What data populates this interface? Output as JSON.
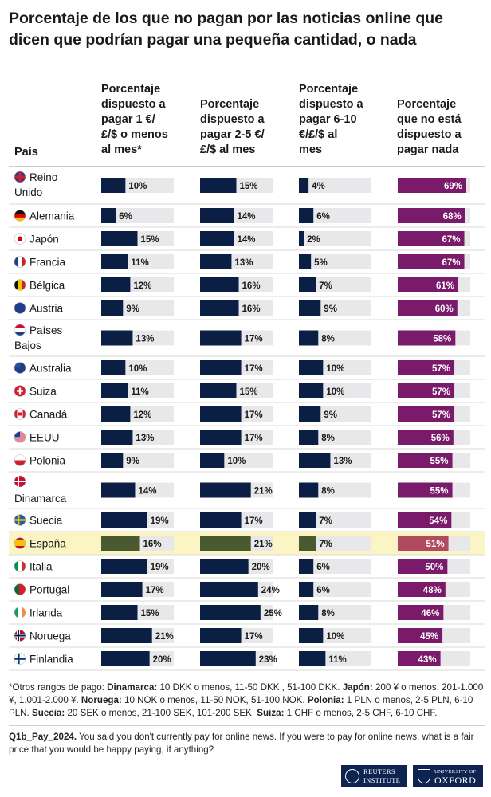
{
  "title": "Porcentaje de los que no pagan por las noticias online que dicen que podrían pagar una pequeña cantidad, o nada",
  "column_headers": {
    "country": "País",
    "c1": [
      "Porcentaje",
      "dispuesto a",
      "pagar 1 €/",
      "£/$ o menos",
      "al mes*"
    ],
    "c2": [
      "Porcentaje",
      "dispuesto a",
      "pagar 2-5 €/",
      "£/$ al mes"
    ],
    "c3": [
      "Porcentaje",
      "dispuesto a",
      "pagar 6-10",
      "€/£/$ al",
      "mes"
    ],
    "c4": [
      "Porcentaje",
      "que no está",
      "dispuesto a",
      "pagar nada"
    ]
  },
  "colors": {
    "bar_paid": "#0b1f44",
    "bar_paid_highlight": "#4a5a30",
    "bar_none": "#7a1a6a",
    "bar_none_highlight": "#b04a5e",
    "track": "#e8e8ea",
    "highlight_row": "#fbf5c4"
  },
  "chart_data": {
    "type": "table",
    "highlight": "España",
    "columns": [
      "Porcentaje dispuesto a pagar 1 €/£/$ o menos al mes*",
      "Porcentaje dispuesto a pagar 2-5 €/£/$ al mes",
      "Porcentaje dispuesto a pagar 6-10 €/£/$ al mes",
      "Porcentaje que no está dispuesto a pagar nada"
    ],
    "rows": [
      {
        "country": [
          "Reino",
          "Unido"
        ],
        "flag": "uk-flag",
        "values": [
          10,
          15,
          4,
          69
        ]
      },
      {
        "country": [
          "Alemania"
        ],
        "flag": "germany-flag",
        "values": [
          6,
          14,
          6,
          68
        ]
      },
      {
        "country": [
          "Japón"
        ],
        "flag": "japan-flag",
        "values": [
          15,
          14,
          2,
          67
        ]
      },
      {
        "country": [
          "Francia"
        ],
        "flag": "france-flag",
        "values": [
          11,
          13,
          5,
          67
        ]
      },
      {
        "country": [
          "Bélgica"
        ],
        "flag": "belgium-flag",
        "values": [
          12,
          16,
          7,
          61
        ]
      },
      {
        "country": [
          "Austria"
        ],
        "flag": "austria-flag",
        "values": [
          9,
          16,
          9,
          60
        ]
      },
      {
        "country": [
          "Países",
          "Bajos"
        ],
        "flag": "netherlands-flag",
        "values": [
          13,
          17,
          8,
          58
        ]
      },
      {
        "country": [
          "Australia"
        ],
        "flag": "australia-flag",
        "values": [
          10,
          17,
          10,
          57
        ]
      },
      {
        "country": [
          "Suiza"
        ],
        "flag": "switzerland-flag",
        "values": [
          11,
          15,
          10,
          57
        ]
      },
      {
        "country": [
          "Canadá"
        ],
        "flag": "canada-flag",
        "values": [
          12,
          17,
          9,
          57
        ]
      },
      {
        "country": [
          "EEUU"
        ],
        "flag": "usa-flag",
        "values": [
          13,
          17,
          8,
          56
        ]
      },
      {
        "country": [
          "Polonia"
        ],
        "flag": "poland-flag",
        "values": [
          9,
          10,
          13,
          55
        ]
      },
      {
        "country": [
          "",
          "Dinamarca"
        ],
        "flag": "denmark-flag",
        "values": [
          14,
          21,
          8,
          55
        ]
      },
      {
        "country": [
          "Suecia"
        ],
        "flag": "sweden-flag",
        "values": [
          19,
          17,
          7,
          54
        ]
      },
      {
        "country": [
          "España"
        ],
        "flag": "spain-flag",
        "values": [
          16,
          21,
          7,
          51
        ]
      },
      {
        "country": [
          "Italia"
        ],
        "flag": "italy-flag",
        "values": [
          19,
          20,
          6,
          50
        ]
      },
      {
        "country": [
          "Portugal"
        ],
        "flag": "portugal-flag",
        "values": [
          17,
          24,
          6,
          48
        ]
      },
      {
        "country": [
          "Irlanda"
        ],
        "flag": "ireland-flag",
        "values": [
          15,
          25,
          8,
          46
        ]
      },
      {
        "country": [
          "Noruega"
        ],
        "flag": "norway-flag",
        "values": [
          21,
          17,
          10,
          45
        ]
      },
      {
        "country": [
          "Finlandia"
        ],
        "flag": "finland-flag",
        "values": [
          20,
          23,
          11,
          43
        ]
      }
    ]
  },
  "footnote": [
    {
      "t": "*Otros rangos de pago: ",
      "b": false
    },
    {
      "t": "Dinamarca:",
      "b": true
    },
    {
      "t": " 10 DKK o menos, 11-50 DKK , 51-100 DKK. ",
      "b": false
    },
    {
      "t": "Japón:",
      "b": true
    },
    {
      "t": " 200 ¥ o menos, 201-1.000 ¥, 1.001-2.000 ¥. ",
      "b": false
    },
    {
      "t": "Noruega:",
      "b": true
    },
    {
      "t": " 10 NOK o menos, 11-50 NOK, 51-100 NOK. ",
      "b": false
    },
    {
      "t": "Polonia:",
      "b": true
    },
    {
      "t": " 1 PLN o menos, 2-5 PLN, 6-10 PLN. ",
      "b": false
    },
    {
      "t": "Suecia:",
      "b": true
    },
    {
      "t": " 20 SEK o menos, 21-100 SEK, 101-200 SEK. ",
      "b": false
    },
    {
      "t": "Suiza:",
      "b": true
    },
    {
      "t": " 1 CHF o menos, 2-5 CHF, 6-10 CHF.",
      "b": false
    }
  ],
  "question": {
    "code": "Q1b_Pay_2024.",
    "text": " You said you don't currently pay for online news. If you were to pay for online news, what is a fair price that you would be happy paying, if anything?"
  },
  "logos": {
    "reuters": [
      "REUTERS",
      "INSTITUTE"
    ],
    "oxford": [
      "UNIVERSITY OF",
      "OXFORD"
    ]
  }
}
